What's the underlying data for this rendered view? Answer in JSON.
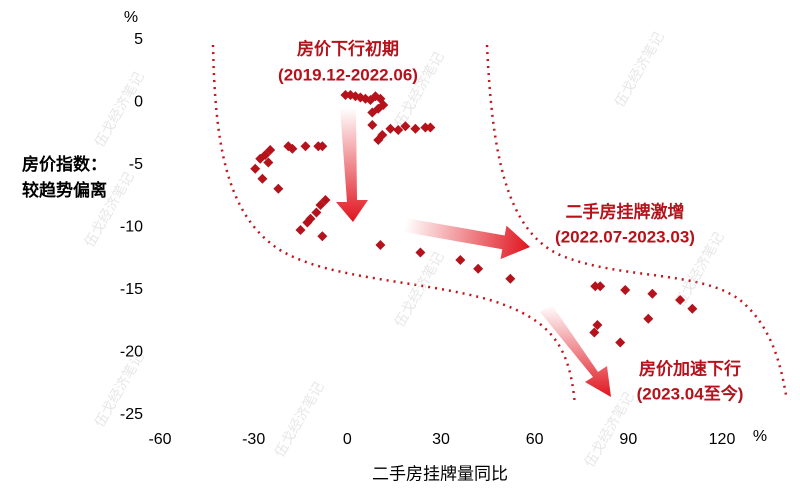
{
  "chart_data": {
    "type": "scatter",
    "ylabel": "房价指数：较趋势偏离",
    "xlabel": "二手房挂牌量同比",
    "y_unit": "%",
    "x_unit": "%",
    "annotations": [
      "房价下行初期",
      "(2019.12-2022.06)",
      "二手房挂牌激增",
      "(2022.07-2023.03)",
      "房价加速下行",
      "(2023.04至今)"
    ],
    "watermark": "伍戈经济笔记",
    "color": "#b5121b",
    "xlim": [
      -60,
      120
    ],
    "xticks": [
      -60,
      -30,
      0,
      30,
      60,
      90,
      120
    ],
    "ylim": [
      -25,
      5
    ],
    "yticks": [
      5,
      0,
      -5,
      -10,
      -15,
      -20,
      -25
    ],
    "x": [
      -0.6,
      1.0,
      2.6,
      4.2,
      5.8,
      7.4,
      9.0,
      10.6,
      11.5,
      9.9,
      8.0,
      8.0,
      9.9,
      11.2,
      13.8,
      16.3,
      18.6,
      21.8,
      25.0,
      26.6,
      -29.5,
      -27.9,
      -26.3,
      -25.3,
      -27.2,
      -24.7,
      -22.1,
      -18.9,
      -17.6,
      -13.4,
      -9.3,
      -8.0,
      -7.0,
      -8.6,
      -9.9,
      -11.8,
      -12.8,
      -15.0,
      -8.0,
      10.6,
      23.4,
      36.2,
      41.9,
      52.2,
      79.4,
      81.0,
      89.0,
      97.7,
      106.6,
      110.5,
      80.1,
      79.1,
      87.4,
      96.4
    ],
    "values": [
      0.6,
      0.6,
      0.5,
      0.4,
      0.3,
      0.2,
      0.5,
      0.3,
      -0.2,
      -0.5,
      -0.8,
      -1.8,
      -3.0,
      -2.6,
      -2.1,
      -2.2,
      -1.9,
      -2.1,
      -2.0,
      -2.0,
      -5.3,
      -4.5,
      -4.2,
      -4.8,
      -6.1,
      -3.8,
      -6.9,
      -3.5,
      -3.7,
      -3.5,
      -3.5,
      -3.5,
      -7.8,
      -8.2,
      -8.8,
      -9.3,
      -9.6,
      -10.2,
      -10.7,
      -11.4,
      -12.0,
      -12.6,
      -13.3,
      -14.1,
      -14.7,
      -14.7,
      -15.0,
      -15.3,
      -15.8,
      -16.5,
      -17.8,
      -18.4,
      -19.2,
      -17.3
    ]
  }
}
